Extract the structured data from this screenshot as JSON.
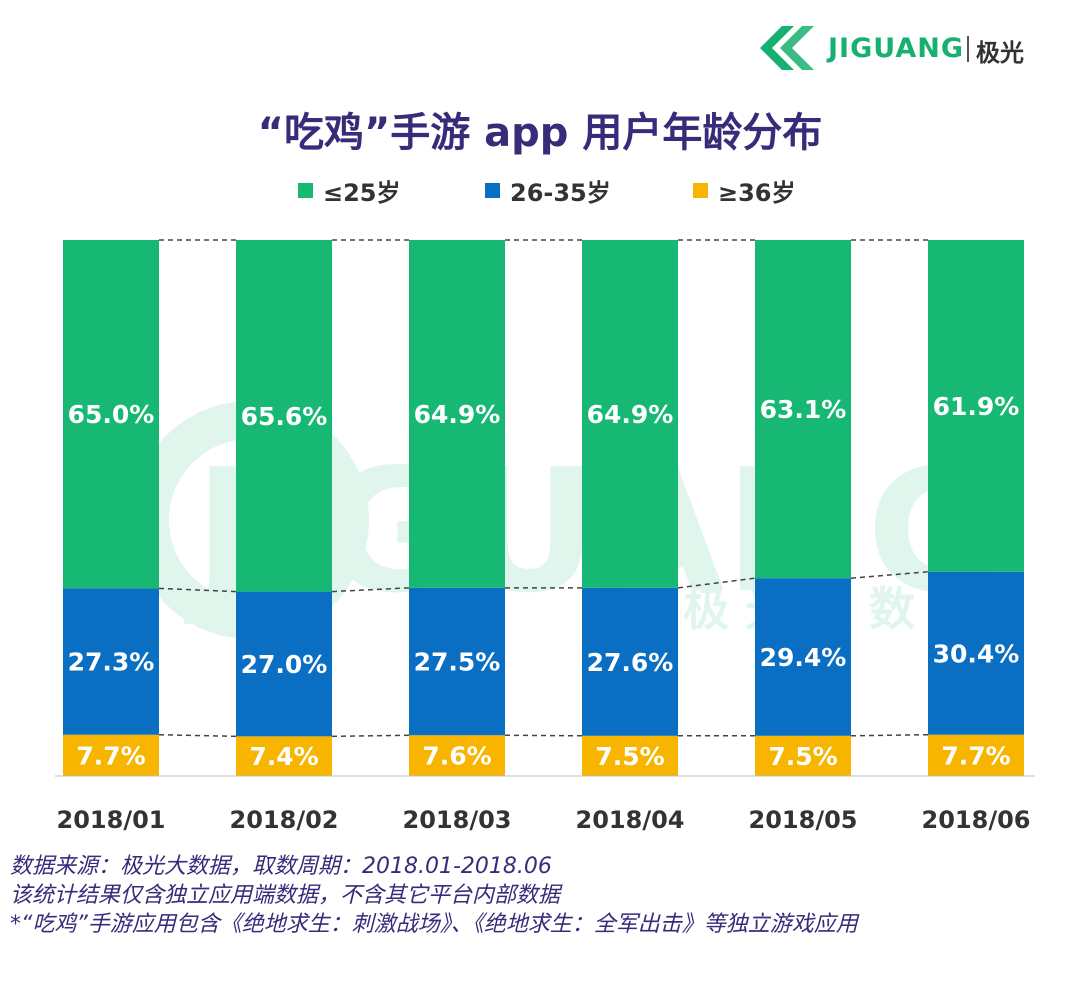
{
  "brand": {
    "name": "JIGUANG",
    "name_cn": "极光",
    "watermark_en": "JIGUANG",
    "watermark_cn": "极 光 大 数 据"
  },
  "colors": {
    "green": "#16b873",
    "blue": "#0a6fc2",
    "orange": "#f7b500",
    "title": "#3a2a7a"
  },
  "chart_data": {
    "type": "bar",
    "stacked": true,
    "title": "“吃鸡”手游 app 用户年龄分布",
    "categories": [
      "2018/01",
      "2018/02",
      "2018/03",
      "2018/04",
      "2018/05",
      "2018/06"
    ],
    "series": [
      {
        "name": "≥36岁",
        "color": "#f7b500",
        "values": [
          7.7,
          7.4,
          7.6,
          7.5,
          7.5,
          7.7
        ],
        "labels": [
          "7.7%",
          "7.4%",
          "7.6%",
          "7.5%",
          "7.5%",
          "7.7%"
        ]
      },
      {
        "name": "26-35岁",
        "color": "#0a6fc2",
        "values": [
          27.3,
          27.0,
          27.5,
          27.6,
          29.4,
          30.4
        ],
        "labels": [
          "27.3%",
          "27.0%",
          "27.5%",
          "27.6%",
          "29.4%",
          "30.4%"
        ]
      },
      {
        "name": "≤25岁",
        "color": "#16b873",
        "values": [
          65.0,
          65.6,
          64.9,
          64.9,
          63.1,
          61.9
        ],
        "labels": [
          "65.0%",
          "65.6%",
          "64.9%",
          "64.9%",
          "63.1%",
          "61.9%"
        ]
      }
    ],
    "legend_order": [
      "≤25岁",
      "26-35岁",
      "≥36岁"
    ],
    "ylim": [
      0,
      100
    ],
    "legend_position": "top",
    "connector_lines": "dashed",
    "grid": false
  },
  "notes": [
    "数据来源：极光大数据，取数周期：2018.01-2018.06",
    "该统计结果仅含独立应用端数据，不含其它平台内部数据",
    " *“吃鸡”手游应用包含《绝地求生：刺激战场》、《绝地求生：全军出击》等独立游戏应用"
  ]
}
